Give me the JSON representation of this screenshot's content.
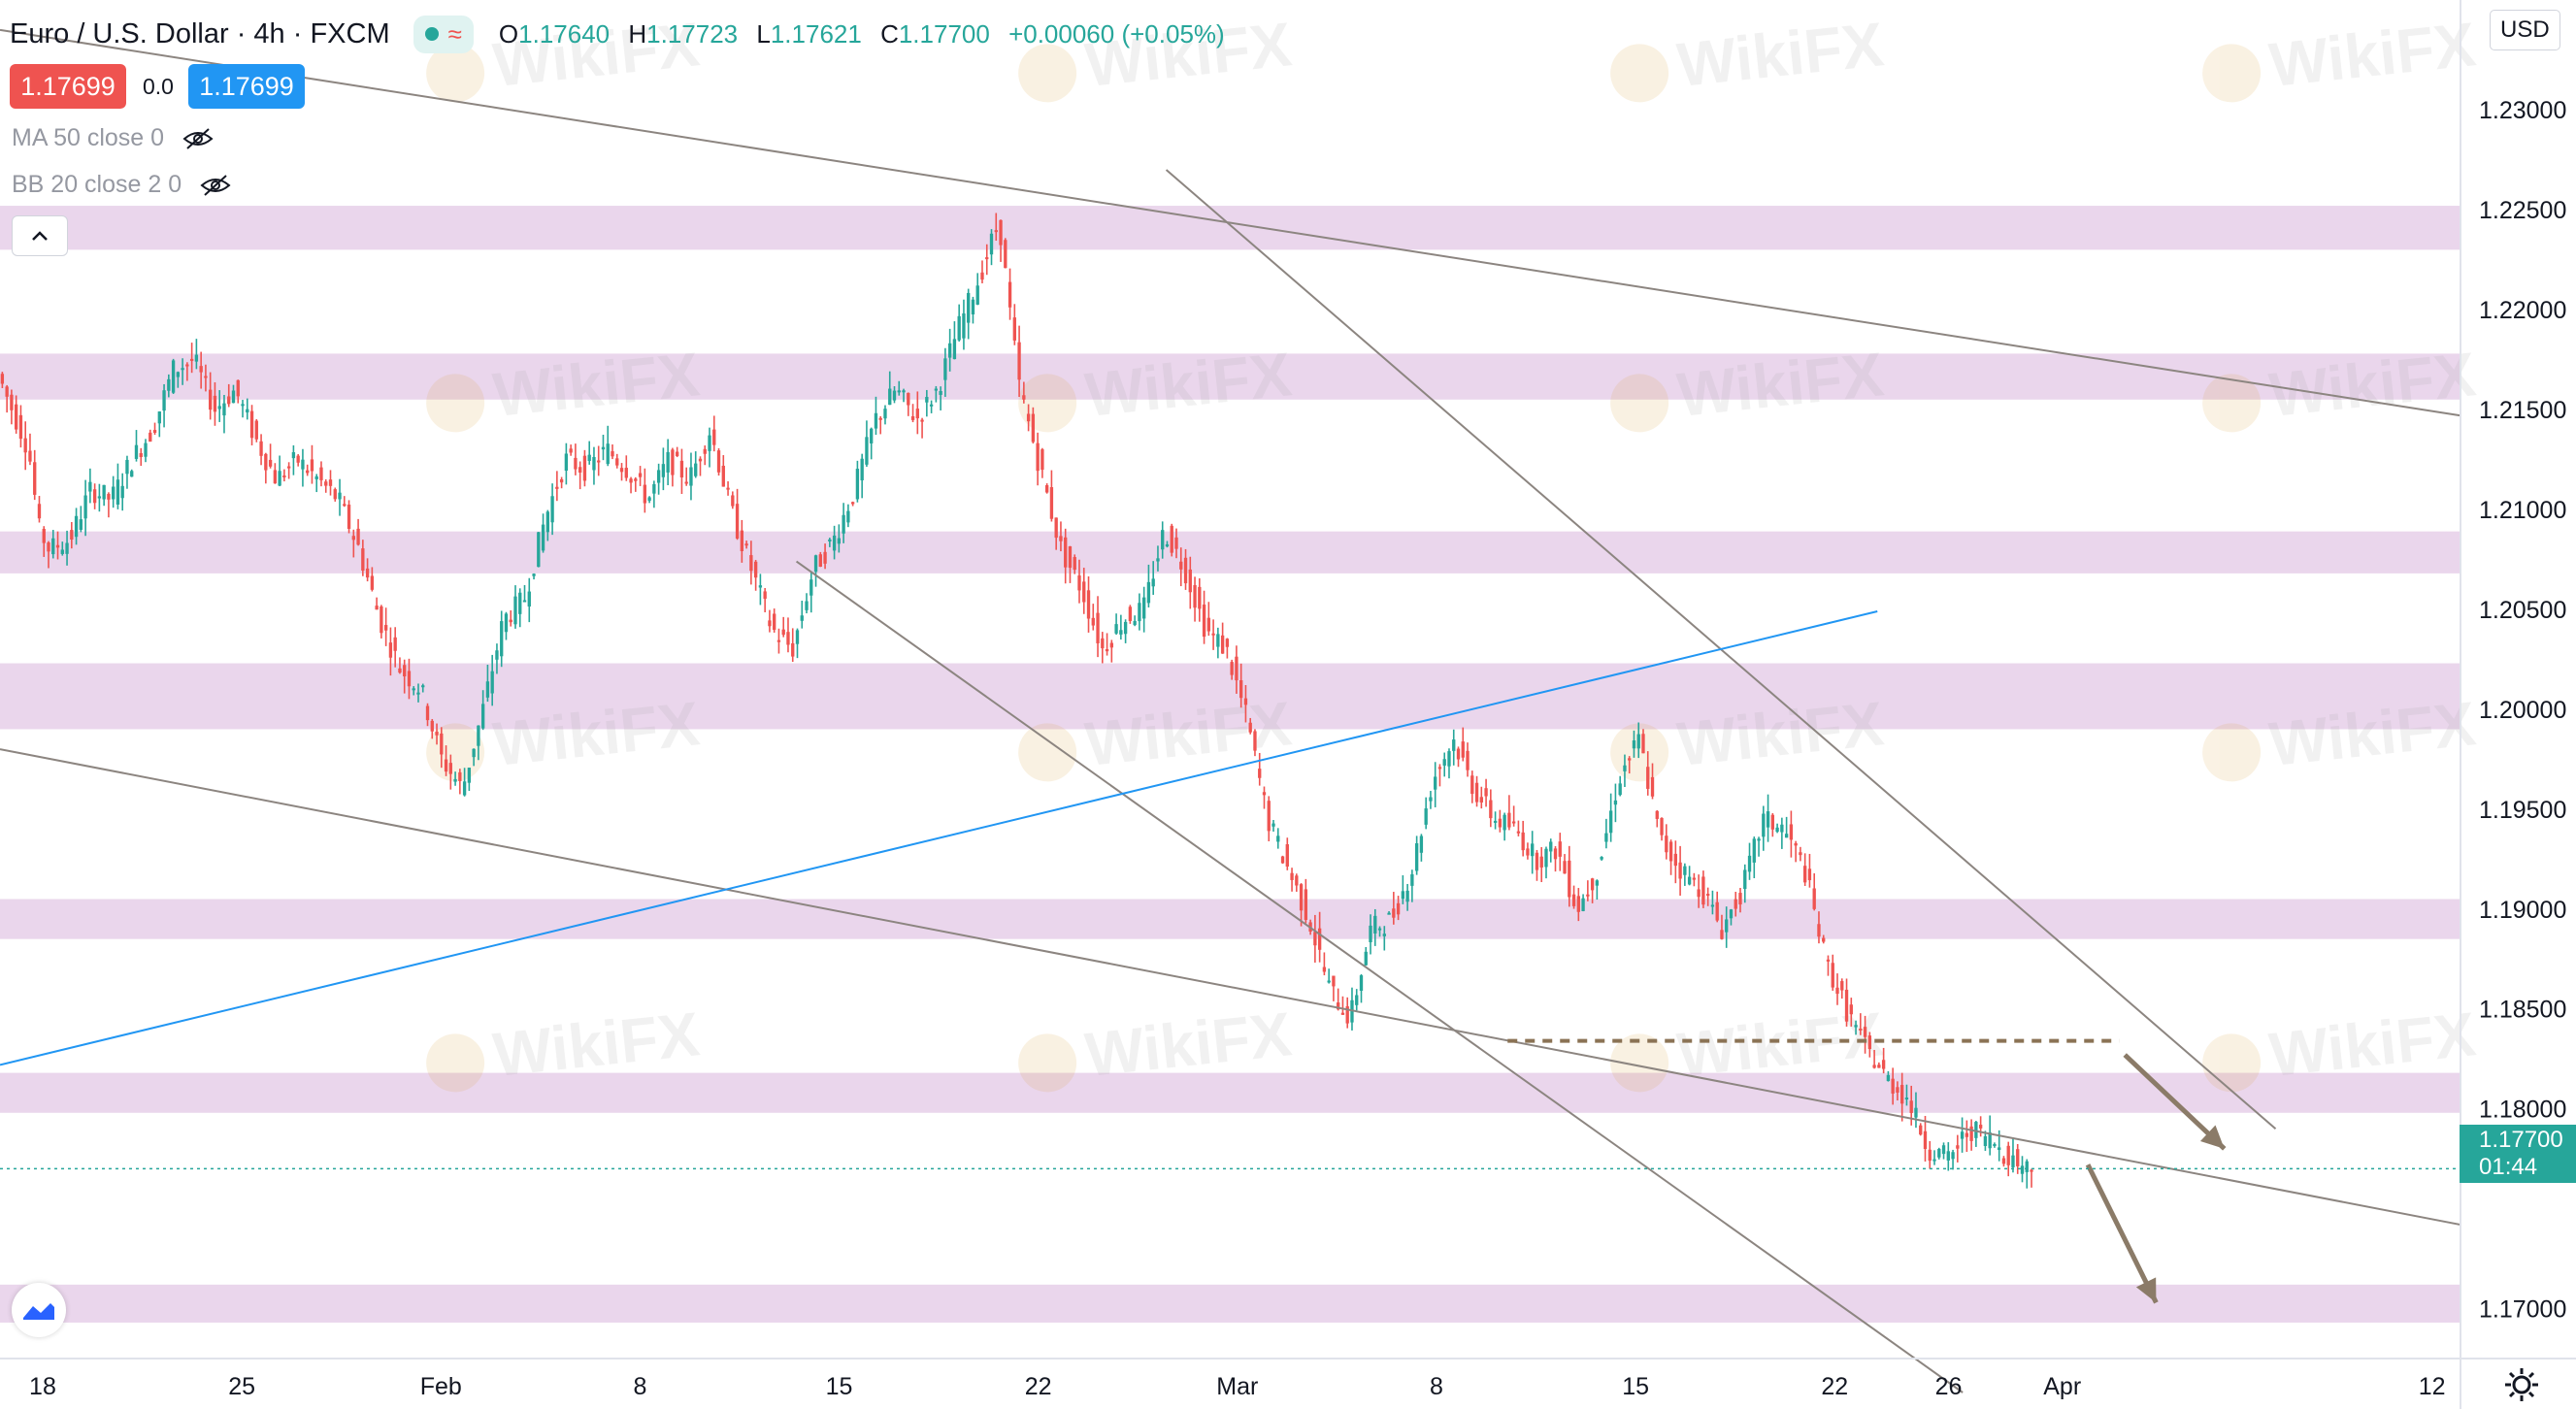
{
  "header": {
    "symbol": "Euro / U.S. Dollar",
    "interval": "4h",
    "exchange": "FXCM",
    "status_wave": "≈",
    "open_label": "O",
    "open": "1.17640",
    "high_label": "H",
    "high": "1.17723",
    "low_label": "L",
    "low": "1.17621",
    "close_label": "C",
    "close": "1.17700",
    "change": "+0.00060 (+0.05%)"
  },
  "trade": {
    "sell_price": "1.17699",
    "buy_price": "1.17699",
    "spread": "0.0"
  },
  "indicators": [
    {
      "label": "MA 50 close 0",
      "icon": "eye-hidden-icon"
    },
    {
      "label": "BB 20 close 2 0",
      "icon": "eye-hidden-icon"
    }
  ],
  "currency": "USD",
  "last_price_label": {
    "price": "1.17700",
    "countdown": "01:44"
  },
  "watermark_text": "WikiFX",
  "colors": {
    "up": "#26a69a",
    "down": "#ef5350",
    "zone": "#e6cfe9",
    "trendline": "#8c8580",
    "blue_line": "#2196f3",
    "arrow": "#8b7b68",
    "dash_line": "#8b7355"
  },
  "chart_data": {
    "type": "candlestick",
    "title": "Euro / U.S. Dollar, 4h, FXCM",
    "y_range": [
      1.1675,
      1.2355
    ],
    "y_ticks": [
      "1.23000",
      "1.22500",
      "1.22000",
      "1.21500",
      "1.21000",
      "1.20500",
      "1.20000",
      "1.19500",
      "1.19000",
      "1.18500",
      "1.18000",
      "1.17000"
    ],
    "x_ticks": [
      "18",
      "25",
      "Feb",
      "8",
      "15",
      "22",
      "Mar",
      "8",
      "15",
      "22",
      "26",
      "Apr",
      "12"
    ],
    "x_tick_days": [
      0,
      7,
      14,
      21,
      28,
      35,
      42,
      49,
      56,
      63,
      67,
      71,
      84
    ],
    "x_range_days": [
      -1.5,
      85
    ],
    "zones": [
      [
        1.223,
        1.2252
      ],
      [
        1.2155,
        1.2178
      ],
      [
        1.2068,
        1.2089
      ],
      [
        1.199,
        1.2023
      ],
      [
        1.1885,
        1.1905
      ],
      [
        1.1798,
        1.1818
      ],
      [
        1.1693,
        1.1712
      ]
    ],
    "trendlines": [
      {
        "from": [
          -1.5,
          1.234
        ],
        "to": [
          85,
          1.2147
        ],
        "style": "gray"
      },
      {
        "from": [
          -1.5,
          1.198
        ],
        "to": [
          85,
          1.1742
        ],
        "style": "gray"
      },
      {
        "from": [
          39.5,
          1.227
        ],
        "to": [
          78.5,
          1.179
        ],
        "style": "gray"
      },
      {
        "from": [
          26.5,
          1.2074
        ],
        "to": [
          67.5,
          1.1658
        ],
        "style": "gray"
      },
      {
        "from": [
          -1.5,
          1.1822
        ],
        "to": [
          64.5,
          1.2049
        ],
        "style": "blue"
      }
    ],
    "dashed_level": {
      "from": [
        51.5,
        1.1834
      ],
      "to": [
        73,
        1.1834
      ]
    },
    "forecast_arrows": [
      {
        "from": [
          73.2,
          1.1827
        ],
        "to": [
          76.7,
          1.178
        ]
      },
      {
        "from": [
          71.9,
          1.1772
        ],
        "to": [
          74.3,
          1.1703
        ]
      }
    ],
    "last_price": 1.177,
    "path_points": [
      [
        -1.5,
        1.2168
      ],
      [
        -1,
        1.2155
      ],
      [
        0,
        1.213
      ],
      [
        0.5,
        1.209
      ],
      [
        1,
        1.208
      ],
      [
        2,
        1.2085
      ],
      [
        3,
        1.211
      ],
      [
        4,
        1.2105
      ],
      [
        5,
        1.2125
      ],
      [
        6,
        1.214
      ],
      [
        7,
        1.217
      ],
      [
        8,
        1.2175
      ],
      [
        9,
        1.215
      ],
      [
        10,
        1.216
      ],
      [
        11,
        1.2135
      ],
      [
        12,
        1.2115
      ],
      [
        13,
        1.2125
      ],
      [
        14,
        1.2115
      ],
      [
        15,
        1.2105
      ],
      [
        16,
        1.208
      ],
      [
        17,
        1.2045
      ],
      [
        18,
        1.202
      ],
      [
        19,
        1.201
      ],
      [
        20,
        1.1975
      ],
      [
        21,
        1.196
      ],
      [
        22,
        1.2
      ],
      [
        23,
        1.2045
      ],
      [
        24,
        1.2055
      ],
      [
        25,
        1.2095
      ],
      [
        26,
        1.2125
      ],
      [
        27,
        1.212
      ],
      [
        28,
        1.213
      ],
      [
        29,
        1.212
      ],
      [
        30,
        1.2105
      ],
      [
        31,
        1.2125
      ],
      [
        32,
        1.2115
      ],
      [
        33,
        1.214
      ],
      [
        34,
        1.21
      ],
      [
        35,
        1.207
      ],
      [
        36,
        1.204
      ],
      [
        37,
        1.203
      ],
      [
        38,
        1.207
      ],
      [
        39,
        1.2085
      ],
      [
        40,
        1.211
      ],
      [
        41,
        1.2145
      ],
      [
        42,
        1.216
      ],
      [
        43,
        1.2145
      ],
      [
        44,
        1.216
      ],
      [
        45,
        1.219
      ],
      [
        46,
        1.2215
      ],
      [
        47,
        1.2245
      ],
      [
        47.5,
        1.22
      ],
      [
        48,
        1.216
      ],
      [
        49,
        1.212
      ],
      [
        50,
        1.208
      ],
      [
        51,
        1.206
      ],
      [
        52,
        1.203
      ],
      [
        53,
        1.2045
      ],
      [
        54,
        1.205
      ],
      [
        55,
        1.209
      ],
      [
        56,
        1.207
      ],
      [
        57,
        1.204
      ],
      [
        58,
        1.203
      ],
      [
        59,
        1.1995
      ],
      [
        60,
        1.1945
      ],
      [
        61,
        1.192
      ],
      [
        62,
        1.1895
      ],
      [
        63,
        1.186
      ],
      [
        64,
        1.1845
      ],
      [
        65,
        1.189
      ],
      [
        66,
        1.1895
      ],
      [
        67,
        1.192
      ],
      [
        68,
        1.1965
      ],
      [
        69,
        1.1985
      ],
      [
        70,
        1.196
      ],
      [
        71,
        1.1945
      ],
      [
        72,
        1.194
      ],
      [
        73,
        1.1925
      ],
      [
        74,
        1.193
      ],
      [
        75,
        1.19
      ],
      [
        76,
        1.192
      ],
      [
        77,
        1.1965
      ],
      [
        78,
        1.1985
      ],
      [
        79,
        1.1935
      ],
      [
        80,
        1.192
      ],
      [
        81,
        1.191
      ],
      [
        82,
        1.189
      ],
      [
        83,
        1.191
      ],
      [
        84,
        1.1945
      ],
      [
        85,
        1.194
      ],
      [
        86,
        1.192
      ],
      [
        87,
        1.1875
      ],
      [
        88,
        1.185
      ],
      [
        89,
        1.183
      ],
      [
        90,
        1.1815
      ],
      [
        91,
        1.1805
      ],
      [
        92,
        1.178
      ],
      [
        93,
        1.1775
      ],
      [
        94,
        1.179
      ],
      [
        95,
        1.1785
      ],
      [
        96,
        1.1775
      ],
      [
        97,
        1.177
      ]
    ],
    "path_x_domain": [
      -1.5,
      97
    ],
    "path_x_map": [
      -1.5,
      70
    ]
  }
}
